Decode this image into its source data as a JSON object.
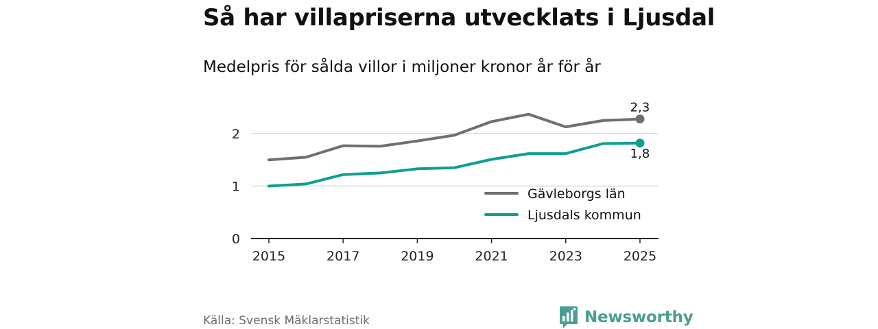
{
  "header": {
    "title": "Så har villapriserna utvecklats i Ljusdal",
    "subtitle": "Medelpris för sålda villor i miljoner kronor år för år"
  },
  "footer": {
    "source": "Källa: Svensk Mäklarstatistik",
    "brand": "Newsworthy"
  },
  "colors": {
    "gavleborg": "#6e6e73",
    "ljusdal": "#0f9e93",
    "grid": "#d9d9d9",
    "axis": "#222222",
    "brand": "#4a9e92"
  },
  "chart_data": {
    "type": "line",
    "title": "Så har villapriserna utvecklats i Ljusdal",
    "subtitle": "Medelpris för sålda villor i miljoner kronor år för år",
    "xlabel": "",
    "ylabel": "",
    "x": [
      2015,
      2016,
      2017,
      2018,
      2019,
      2020,
      2021,
      2022,
      2023,
      2024,
      2025
    ],
    "xticks": [
      2015,
      2017,
      2019,
      2021,
      2023,
      2025
    ],
    "xtick_labels": [
      "2015",
      "2017",
      "2019",
      "2021",
      "2023",
      "2025"
    ],
    "yticks": [
      0,
      1,
      2
    ],
    "ytick_labels": [
      "0",
      "1",
      "2"
    ],
    "xlim": [
      2014.5,
      2025.5
    ],
    "ylim": [
      0,
      2.5
    ],
    "grid": true,
    "legend_position": "bottom-right",
    "series": [
      {
        "name": "Gävleborgs län",
        "key": "gavleborg",
        "values": [
          1.5,
          1.55,
          1.77,
          1.76,
          1.86,
          1.97,
          2.23,
          2.37,
          2.13,
          2.25,
          2.28
        ],
        "end_label": "2,3",
        "end_label_position": "above"
      },
      {
        "name": "Ljusdals kommun",
        "key": "ljusdal",
        "values": [
          1.0,
          1.04,
          1.22,
          1.25,
          1.33,
          1.35,
          1.51,
          1.62,
          1.62,
          1.81,
          1.82
        ],
        "end_label": "1,8",
        "end_label_position": "below"
      }
    ]
  }
}
